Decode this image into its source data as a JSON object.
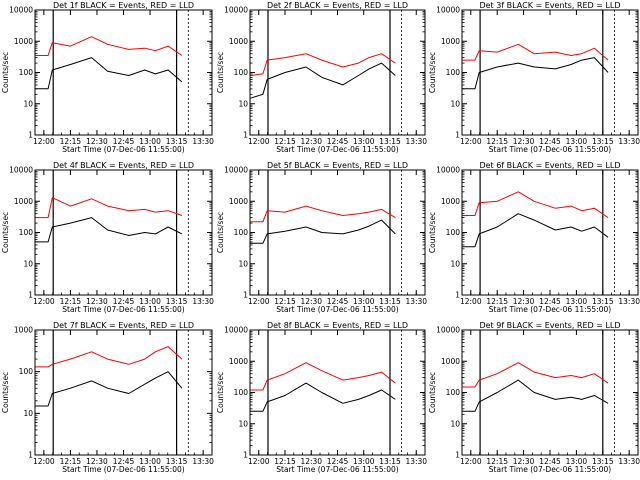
{
  "chart_data": [
    {
      "type": "line",
      "title": "Det 1f BLACK = Events, RED = LLD",
      "xlabel": "Start Time (07-Dec-06 11:55:00)",
      "ylabel": "Counts/sec",
      "yscale": "log",
      "ylim": [
        1,
        10000
      ],
      "xlim": [
        "11:55",
        "13:35"
      ],
      "xticks": [
        "12:00",
        "12:15",
        "12:30",
        "12:45",
        "13:00",
        "13:15",
        "13:30"
      ],
      "yticks": [
        "1",
        "10",
        "100",
        "1000",
        "10000"
      ],
      "series": [
        {
          "color": "#000000",
          "values": [
            [
              11.92,
              30
            ],
            [
              12.04,
              30
            ],
            [
              12.08,
              120
            ],
            [
              12.25,
              180
            ],
            [
              12.45,
              300
            ],
            [
              12.6,
              110
            ],
            [
              12.8,
              80
            ],
            [
              12.95,
              120
            ],
            [
              13.05,
              90
            ],
            [
              13.17,
              120
            ],
            [
              13.3,
              50
            ]
          ]
        },
        {
          "color": "#ff0000",
          "values": [
            [
              11.92,
              350
            ],
            [
              12.04,
              350
            ],
            [
              12.08,
              900
            ],
            [
              12.25,
              700
            ],
            [
              12.45,
              1400
            ],
            [
              12.6,
              800
            ],
            [
              12.8,
              550
            ],
            [
              12.95,
              600
            ],
            [
              13.05,
              500
            ],
            [
              13.17,
              700
            ],
            [
              13.3,
              350
            ]
          ]
        }
      ]
    },
    {
      "type": "line",
      "title": "Det 2f BLACK = Events, RED = LLD",
      "xlabel": "Start Time (07-Dec-06 11:55:00)",
      "ylabel": "Counts/sec",
      "yscale": "log",
      "ylim": [
        1,
        10000
      ],
      "xlim": [
        "11:55",
        "13:35"
      ],
      "xticks": [
        "12:00",
        "12:15",
        "12:30",
        "12:45",
        "13:00",
        "13:15",
        "13:30"
      ],
      "yticks": [
        "1",
        "10",
        "100",
        "1000",
        "10000"
      ],
      "series": [
        {
          "color": "#000000",
          "values": [
            [
              11.92,
              15
            ],
            [
              12.04,
              20
            ],
            [
              12.08,
              60
            ],
            [
              12.25,
              100
            ],
            [
              12.45,
              150
            ],
            [
              12.6,
              70
            ],
            [
              12.8,
              40
            ],
            [
              12.95,
              80
            ],
            [
              13.05,
              130
            ],
            [
              13.17,
              200
            ],
            [
              13.3,
              80
            ]
          ]
        },
        {
          "color": "#ff0000",
          "values": [
            [
              11.92,
              80
            ],
            [
              12.04,
              90
            ],
            [
              12.08,
              250
            ],
            [
              12.25,
              300
            ],
            [
              12.45,
              400
            ],
            [
              12.6,
              250
            ],
            [
              12.8,
              150
            ],
            [
              12.95,
              200
            ],
            [
              13.05,
              300
            ],
            [
              13.17,
              400
            ],
            [
              13.3,
              200
            ]
          ]
        }
      ]
    },
    {
      "type": "line",
      "title": "Det 3f BLACK = Events, RED = LLD",
      "xlabel": "Start Time (07-Dec-06 11:55:00)",
      "ylabel": "Counts/sec",
      "yscale": "log",
      "ylim": [
        1,
        10000
      ],
      "xlim": [
        "11:55",
        "13:35"
      ],
      "xticks": [
        "12:00",
        "12:15",
        "12:30",
        "12:45",
        "13:00",
        "13:15",
        "13:30"
      ],
      "yticks": [
        "1",
        "10",
        "100",
        "1000",
        "10000"
      ],
      "series": [
        {
          "color": "#000000",
          "values": [
            [
              11.92,
              30
            ],
            [
              12.04,
              30
            ],
            [
              12.08,
              100
            ],
            [
              12.25,
              150
            ],
            [
              12.45,
              200
            ],
            [
              12.6,
              150
            ],
            [
              12.8,
              130
            ],
            [
              12.95,
              180
            ],
            [
              13.05,
              250
            ],
            [
              13.17,
              300
            ],
            [
              13.3,
              100
            ]
          ]
        },
        {
          "color": "#ff0000",
          "values": [
            [
              11.92,
              250
            ],
            [
              12.04,
              250
            ],
            [
              12.08,
              500
            ],
            [
              12.25,
              450
            ],
            [
              12.45,
              800
            ],
            [
              12.6,
              400
            ],
            [
              12.8,
              450
            ],
            [
              12.95,
              350
            ],
            [
              13.05,
              400
            ],
            [
              13.17,
              600
            ],
            [
              13.3,
              250
            ]
          ]
        }
      ]
    },
    {
      "type": "line",
      "title": "Det 4f BLACK = Events, RED = LLD",
      "xlabel": "Start Time (07-Dec-06 11:55:00)",
      "ylabel": "Counts/sec",
      "yscale": "log",
      "ylim": [
        1,
        10000
      ],
      "xlim": [
        "11:55",
        "13:35"
      ],
      "xticks": [
        "12:00",
        "12:15",
        "12:30",
        "12:45",
        "13:00",
        "13:15",
        "13:30"
      ],
      "yticks": [
        "1",
        "10",
        "100",
        "1000",
        "10000"
      ],
      "series": [
        {
          "color": "#000000",
          "values": [
            [
              11.92,
              50
            ],
            [
              12.04,
              50
            ],
            [
              12.08,
              150
            ],
            [
              12.25,
              200
            ],
            [
              12.45,
              300
            ],
            [
              12.6,
              120
            ],
            [
              12.8,
              80
            ],
            [
              12.95,
              100
            ],
            [
              13.05,
              90
            ],
            [
              13.17,
              150
            ],
            [
              13.3,
              90
            ]
          ]
        },
        {
          "color": "#ff0000",
          "values": [
            [
              11.92,
              300
            ],
            [
              12.04,
              300
            ],
            [
              12.08,
              1300
            ],
            [
              12.25,
              700
            ],
            [
              12.45,
              1200
            ],
            [
              12.6,
              700
            ],
            [
              12.8,
              500
            ],
            [
              12.95,
              550
            ],
            [
              13.05,
              450
            ],
            [
              13.17,
              500
            ],
            [
              13.3,
              350
            ]
          ]
        }
      ]
    },
    {
      "type": "line",
      "title": "Det 5f BLACK = Events, RED = LLD",
      "xlabel": "Start Time (07-Dec-06 11:55:00)",
      "ylabel": "Counts/sec",
      "yscale": "log",
      "ylim": [
        1,
        10000
      ],
      "xlim": [
        "11:55",
        "13:35"
      ],
      "xticks": [
        "12:00",
        "12:15",
        "12:30",
        "12:45",
        "13:00",
        "13:15",
        "13:30"
      ],
      "yticks": [
        "1",
        "10",
        "100",
        "1000",
        "10000"
      ],
      "series": [
        {
          "color": "#000000",
          "values": [
            [
              11.92,
              45
            ],
            [
              12.04,
              45
            ],
            [
              12.08,
              90
            ],
            [
              12.25,
              110
            ],
            [
              12.45,
              150
            ],
            [
              12.6,
              100
            ],
            [
              12.8,
              90
            ],
            [
              12.95,
              120
            ],
            [
              13.05,
              160
            ],
            [
              13.17,
              250
            ],
            [
              13.3,
              90
            ]
          ]
        },
        {
          "color": "#ff0000",
          "values": [
            [
              11.92,
              220
            ],
            [
              12.04,
              220
            ],
            [
              12.08,
              500
            ],
            [
              12.25,
              450
            ],
            [
              12.45,
              700
            ],
            [
              12.6,
              500
            ],
            [
              12.8,
              350
            ],
            [
              12.95,
              400
            ],
            [
              13.05,
              450
            ],
            [
              13.17,
              550
            ],
            [
              13.3,
              300
            ]
          ]
        }
      ]
    },
    {
      "type": "line",
      "title": "Det 6f BLACK = Events, RED = LLD",
      "xlabel": "Start Time (07-Dec-06 11:55:00)",
      "ylabel": "Counts/sec",
      "yscale": "log",
      "ylim": [
        1,
        10000
      ],
      "xlim": [
        "11:55",
        "13:35"
      ],
      "xticks": [
        "12:00",
        "12:15",
        "12:30",
        "12:45",
        "13:00",
        "13:15",
        "13:30"
      ],
      "yticks": [
        "1",
        "10",
        "100",
        "1000",
        "10000"
      ],
      "series": [
        {
          "color": "#000000",
          "values": [
            [
              11.92,
              35
            ],
            [
              12.04,
              35
            ],
            [
              12.08,
              90
            ],
            [
              12.25,
              150
            ],
            [
              12.45,
              400
            ],
            [
              12.6,
              250
            ],
            [
              12.8,
              120
            ],
            [
              12.95,
              150
            ],
            [
              13.05,
              110
            ],
            [
              13.17,
              150
            ],
            [
              13.3,
              70
            ]
          ]
        },
        {
          "color": "#ff0000",
          "values": [
            [
              11.92,
              350
            ],
            [
              12.04,
              350
            ],
            [
              12.08,
              900
            ],
            [
              12.25,
              1000
            ],
            [
              12.45,
              2000
            ],
            [
              12.6,
              1000
            ],
            [
              12.8,
              600
            ],
            [
              12.95,
              700
            ],
            [
              13.05,
              500
            ],
            [
              13.17,
              600
            ],
            [
              13.3,
              300
            ]
          ]
        }
      ]
    },
    {
      "type": "line",
      "title": "Det 7f BLACK = Events, RED = LLD",
      "xlabel": "Start Time (07-Dec-06 11:55:00)",
      "ylabel": "Counts/sec",
      "yscale": "log",
      "ylim": [
        1,
        1000
      ],
      "xlim": [
        "11:55",
        "13:35"
      ],
      "xticks": [
        "12:00",
        "12:15",
        "12:30",
        "12:45",
        "13:00",
        "13:15",
        "13:30"
      ],
      "yticks": [
        "1",
        "10",
        "100",
        "1000"
      ],
      "series": [
        {
          "color": "#000000",
          "values": [
            [
              11.92,
              15
            ],
            [
              12.04,
              15
            ],
            [
              12.08,
              30
            ],
            [
              12.25,
              40
            ],
            [
              12.45,
              60
            ],
            [
              12.6,
              40
            ],
            [
              12.8,
              30
            ],
            [
              12.95,
              50
            ],
            [
              13.05,
              70
            ],
            [
              13.17,
              100
            ],
            [
              13.3,
              40
            ]
          ]
        },
        {
          "color": "#ff0000",
          "values": [
            [
              11.92,
              130
            ],
            [
              12.04,
              130
            ],
            [
              12.08,
              150
            ],
            [
              12.25,
              200
            ],
            [
              12.45,
              300
            ],
            [
              12.6,
              200
            ],
            [
              12.8,
              150
            ],
            [
              12.95,
              200
            ],
            [
              13.05,
              300
            ],
            [
              13.17,
              400
            ],
            [
              13.3,
              200
            ]
          ]
        }
      ]
    },
    {
      "type": "line",
      "title": "Det 8f BLACK = Events, RED = LLD",
      "xlabel": "Start Time (07-Dec-06 11:55:00)",
      "ylabel": "Counts/sec",
      "yscale": "log",
      "ylim": [
        1,
        10000
      ],
      "xlim": [
        "11:55",
        "13:35"
      ],
      "xticks": [
        "12:00",
        "12:15",
        "12:30",
        "12:45",
        "13:00",
        "13:15",
        "13:30"
      ],
      "yticks": [
        "1",
        "10",
        "100",
        "1000",
        "10000"
      ],
      "series": [
        {
          "color": "#000000",
          "values": [
            [
              11.92,
              25
            ],
            [
              12.04,
              25
            ],
            [
              12.08,
              50
            ],
            [
              12.25,
              80
            ],
            [
              12.45,
              200
            ],
            [
              12.6,
              100
            ],
            [
              12.8,
              45
            ],
            [
              12.95,
              60
            ],
            [
              13.05,
              80
            ],
            [
              13.17,
              120
            ],
            [
              13.3,
              60
            ]
          ]
        },
        {
          "color": "#ff0000",
          "values": [
            [
              11.92,
              120
            ],
            [
              12.04,
              120
            ],
            [
              12.08,
              250
            ],
            [
              12.25,
              400
            ],
            [
              12.45,
              900
            ],
            [
              12.6,
              500
            ],
            [
              12.8,
              250
            ],
            [
              12.95,
              300
            ],
            [
              13.05,
              350
            ],
            [
              13.17,
              450
            ],
            [
              13.3,
              200
            ]
          ]
        }
      ]
    },
    {
      "type": "line",
      "title": "Det 9f BLACK = Events, RED = LLD",
      "xlabel": "Start Time (07-Dec-06 11:55:00)",
      "ylabel": "Counts/sec",
      "yscale": "log",
      "ylim": [
        1,
        10000
      ],
      "xlim": [
        "11:55",
        "13:35"
      ],
      "xticks": [
        "12:00",
        "12:15",
        "12:30",
        "12:45",
        "13:00",
        "13:15",
        "13:30"
      ],
      "yticks": [
        "1",
        "10",
        "100",
        "1000",
        "10000"
      ],
      "series": [
        {
          "color": "#000000",
          "values": [
            [
              11.92,
              25
            ],
            [
              12.04,
              25
            ],
            [
              12.08,
              50
            ],
            [
              12.25,
              100
            ],
            [
              12.45,
              250
            ],
            [
              12.6,
              100
            ],
            [
              12.8,
              60
            ],
            [
              12.95,
              70
            ],
            [
              13.05,
              60
            ],
            [
              13.17,
              80
            ],
            [
              13.3,
              45
            ]
          ]
        },
        {
          "color": "#ff0000",
          "values": [
            [
              11.92,
              150
            ],
            [
              12.04,
              150
            ],
            [
              12.08,
              250
            ],
            [
              12.25,
              400
            ],
            [
              12.45,
              900
            ],
            [
              12.6,
              450
            ],
            [
              12.8,
              300
            ],
            [
              12.95,
              350
            ],
            [
              13.05,
              300
            ],
            [
              13.17,
              400
            ],
            [
              13.3,
              200
            ]
          ]
        }
      ]
    }
  ]
}
